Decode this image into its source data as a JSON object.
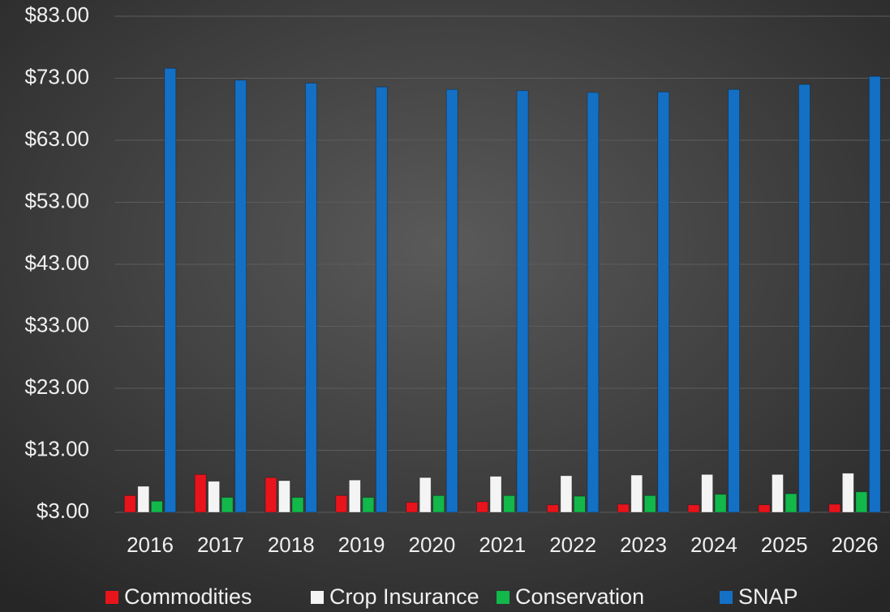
{
  "chart_data": {
    "type": "bar",
    "categories": [
      "2016",
      "2017",
      "2018",
      "2019",
      "2020",
      "2021",
      "2022",
      "2023",
      "2024",
      "2025",
      "2026"
    ],
    "series": [
      {
        "name": "Commodities",
        "color": "#e8141c",
        "values": [
          5.7,
          9.1,
          8.6,
          5.7,
          4.6,
          4.7,
          4.2,
          4.3,
          4.2,
          4.2,
          4.3
        ]
      },
      {
        "name": "Crop Insurance",
        "color": "#f4f4f4",
        "values": [
          7.2,
          8.0,
          8.1,
          8.2,
          8.6,
          8.8,
          8.9,
          9.0,
          9.1,
          9.1,
          9.3
        ]
      },
      {
        "name": "Conservation",
        "color": "#12b84a",
        "values": [
          4.8,
          5.4,
          5.4,
          5.4,
          5.7,
          5.7,
          5.6,
          5.7,
          5.9,
          6.0,
          6.3
        ]
      },
      {
        "name": "SNAP",
        "color": "#1370c4",
        "values": [
          74.6,
          72.7,
          72.2,
          71.6,
          71.2,
          71.0,
          70.7,
          70.8,
          71.2,
          72.0,
          73.3
        ]
      }
    ],
    "ylim": [
      3,
      83
    ],
    "yticks": [
      {
        "value": 3,
        "label": "$3.00"
      },
      {
        "value": 13,
        "label": "$13.00"
      },
      {
        "value": 23,
        "label": "$23.00"
      },
      {
        "value": 33,
        "label": "$33.00"
      },
      {
        "value": 43,
        "label": "$43.00"
      },
      {
        "value": 53,
        "label": "$53.00"
      },
      {
        "value": 63,
        "label": "$63.00"
      },
      {
        "value": 73,
        "label": "$73.00"
      },
      {
        "value": 83,
        "label": "$83.00"
      }
    ],
    "grid": true,
    "legend": "bottom"
  }
}
